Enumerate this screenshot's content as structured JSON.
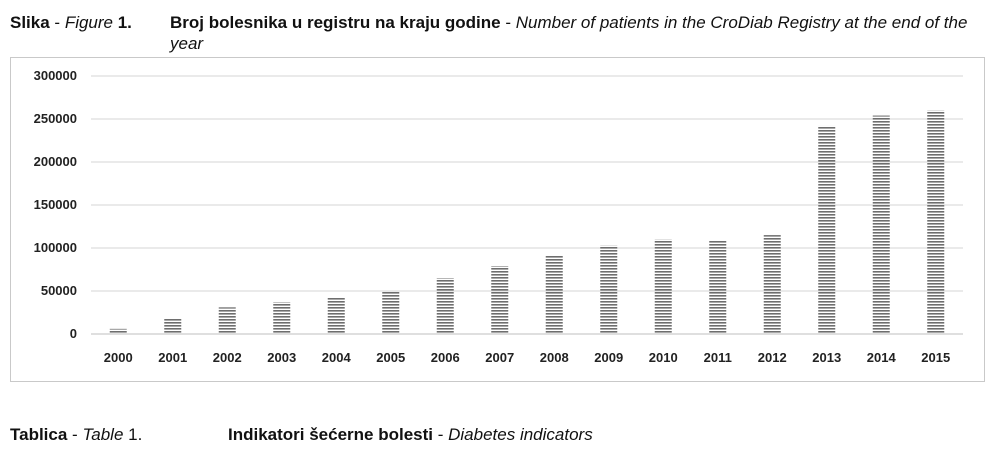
{
  "figure_caption": {
    "label_bold": "Slika",
    "label_sep": " - ",
    "label_italic": "Figure",
    "label_num": " 1.",
    "title_bold": "Broj bolesnika u registru na kraju godine",
    "title_sep": " - ",
    "title_italic": "Number of patients in the CroDiab Registry at the end of the year"
  },
  "chart_data": {
    "type": "bar",
    "title": "",
    "xlabel": "",
    "ylabel": "",
    "categories": [
      "2000",
      "2001",
      "2002",
      "2003",
      "2004",
      "2005",
      "2006",
      "2007",
      "2008",
      "2009",
      "2010",
      "2011",
      "2012",
      "2013",
      "2014",
      "2015"
    ],
    "values": [
      6000,
      18000,
      31000,
      37000,
      43000,
      49000,
      65000,
      79000,
      91000,
      103000,
      110000,
      109000,
      115000,
      242000,
      254000,
      260000
    ],
    "ylim": [
      0,
      300000
    ],
    "yticks": [
      "0",
      "50000",
      "100000",
      "150000",
      "200000",
      "250000",
      "300000"
    ],
    "grid": true,
    "legend": "none",
    "bar_fill": "horizontal-hatch",
    "colors": {
      "bar": "#6e6e6e",
      "grid": "#d4d4d4",
      "axis": "#bfbfbf"
    }
  },
  "table_caption": {
    "label_bold": "Tablica",
    "label_sep": " - ",
    "label_italic": "Table",
    "label_num": " 1.",
    "title_bold": "Indikatori šećerne bolesti",
    "title_sep": " - ",
    "title_italic": "Diabetes indicators"
  }
}
